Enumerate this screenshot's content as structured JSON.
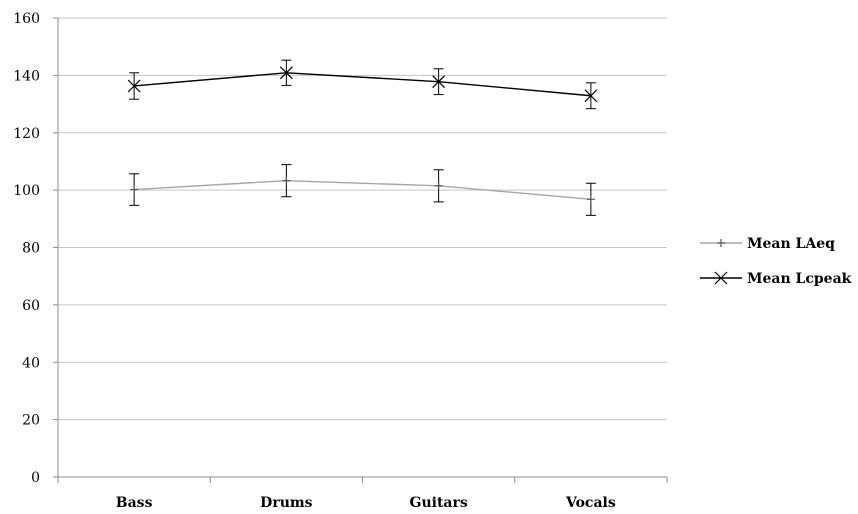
{
  "chart_data": {
    "type": "line",
    "categories": [
      "Bass",
      "Drums",
      "Guitars",
      "Vocals"
    ],
    "ylim": [
      0,
      160
    ],
    "yticks": [
      0,
      20,
      40,
      60,
      80,
      100,
      120,
      140,
      160
    ],
    "grid": true,
    "legend_position": "right",
    "series": [
      {
        "name": "Mean LAeq",
        "marker": "plus",
        "color": "#a6a6a6",
        "values": [
          100.2,
          103.3,
          101.5,
          96.8
        ],
        "error": [
          5.5,
          5.6,
          5.6,
          5.6
        ]
      },
      {
        "name": "Mean Lcpeak",
        "marker": "x",
        "color": "#000000",
        "values": [
          136.3,
          140.9,
          137.8,
          132.9
        ],
        "error": [
          4.6,
          4.4,
          4.5,
          4.5
        ]
      }
    ]
  }
}
